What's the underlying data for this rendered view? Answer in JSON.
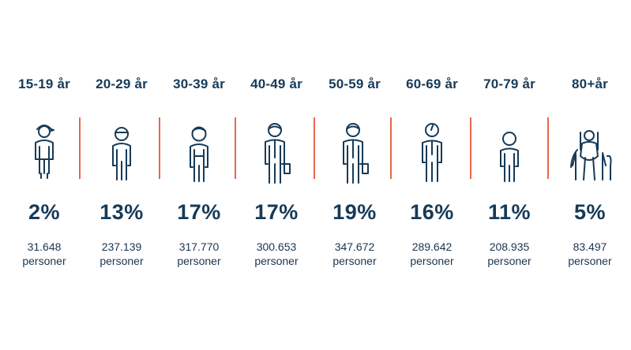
{
  "chart_data": {
    "type": "infographic",
    "unit_suffix": "personer",
    "groups": [
      {
        "age": "15-19 år",
        "percent": "2%",
        "count": "31.648",
        "icon": "youth-cap-icon"
      },
      {
        "age": "20-29 år",
        "percent": "13%",
        "count": "237.139",
        "icon": "young-adult-icon"
      },
      {
        "age": "30-39 år",
        "percent": "17%",
        "count": "317.770",
        "icon": "adult-icon"
      },
      {
        "age": "40-49 år",
        "percent": "17%",
        "count": "300.653",
        "icon": "adult-briefcase-icon"
      },
      {
        "age": "50-59 år",
        "percent": "19%",
        "count": "347.672",
        "icon": "adult-briefcase-icon"
      },
      {
        "age": "60-69 år",
        "percent": "16%",
        "count": "289.642",
        "icon": "senior-icon"
      },
      {
        "age": "70-79 år",
        "percent": "11%",
        "count": "208.935",
        "icon": "elderly-icon"
      },
      {
        "age": "80+år",
        "percent": "5%",
        "count": "83.497",
        "icon": "wheelchair-icon"
      }
    ]
  },
  "colors": {
    "text": "#163a58",
    "divider": "#e8664f",
    "background": "#ffffff"
  }
}
